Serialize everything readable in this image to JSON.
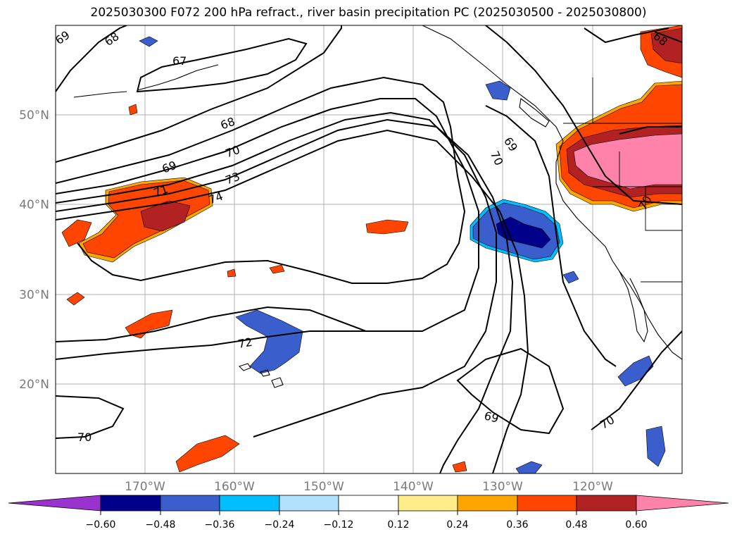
{
  "title": "2025030300 F072 200 hPa refract., river basin precipitation PC (2025030500 - 2025030800)",
  "map": {
    "lat_labels": [
      "50°N",
      "40°N",
      "30°N",
      "20°N"
    ],
    "lon_labels": [
      "170°W",
      "160°W",
      "150°W",
      "140°W",
      "130°W",
      "120°W"
    ],
    "extent": {
      "lon": [
        -180,
        -110
      ],
      "lat": [
        10,
        60
      ]
    },
    "gridlines": true
  },
  "contours": {
    "labels": [
      "69",
      "68",
      "67",
      "68",
      "70",
      "69",
      "71",
      "73",
      "74",
      "69",
      "70",
      "72",
      "69",
      "70",
      "70",
      "70",
      "68"
    ]
  },
  "colorbar": {
    "colors": [
      "#9a32cd",
      "#00008b",
      "#3a5fcd",
      "#00bfff",
      "#b0e2ff",
      "#ffffff",
      "#ffec8b",
      "#ffa500",
      "#ff4500",
      "#b22222",
      "#ff82ab"
    ],
    "tick_labels": [
      "−0.60",
      "−0.48",
      "−0.36",
      "−0.24",
      "−0.12",
      "0.12",
      "0.24",
      "0.36",
      "0.48",
      "0.60"
    ]
  }
}
